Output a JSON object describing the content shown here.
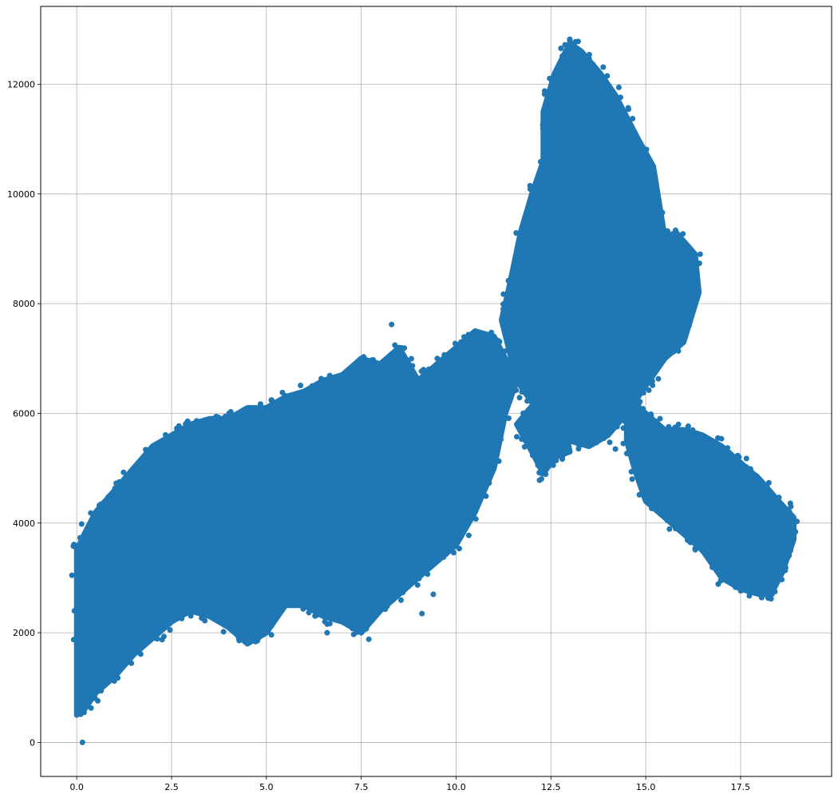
{
  "chart_data": {
    "type": "scatter",
    "title": "",
    "xlabel": "",
    "ylabel": "",
    "xlim": [
      -0.95,
      19.9
    ],
    "ylim": [
      -620,
      13420
    ],
    "grid": true,
    "marker_color": "#1f77b4",
    "x_ticks": [
      {
        "value": 0.0,
        "label": "0.0"
      },
      {
        "value": 2.5,
        "label": "2.5"
      },
      {
        "value": 5.0,
        "label": "5.0"
      },
      {
        "value": 7.5,
        "label": "7.5"
      },
      {
        "value": 10.0,
        "label": "10.0"
      },
      {
        "value": 12.5,
        "label": "12.5"
      },
      {
        "value": 15.0,
        "label": "15.0"
      },
      {
        "value": 17.5,
        "label": "17.5"
      }
    ],
    "y_ticks": [
      {
        "value": 0,
        "label": "0"
      },
      {
        "value": 2000,
        "label": "2000"
      },
      {
        "value": 4000,
        "label": "4000"
      },
      {
        "value": 6000,
        "label": "6000"
      },
      {
        "value": 8000,
        "label": "8000"
      },
      {
        "value": 10000,
        "label": "10000"
      },
      {
        "value": 12000,
        "label": "12000"
      }
    ],
    "density_regions": [
      {
        "name": "left-rising-band",
        "polygon": [
          [
            0.0,
            500
          ],
          [
            0.2,
            600
          ],
          [
            0.5,
            900
          ],
          [
            1.0,
            1200
          ],
          [
            1.5,
            1600
          ],
          [
            2.0,
            1900
          ],
          [
            2.5,
            2200
          ],
          [
            3.0,
            2400
          ],
          [
            3.5,
            2300
          ],
          [
            4.0,
            2100
          ],
          [
            4.5,
            1800
          ],
          [
            5.0,
            2000
          ],
          [
            5.5,
            2500
          ],
          [
            6.0,
            2500
          ],
          [
            6.5,
            2300
          ],
          [
            7.0,
            2200
          ],
          [
            7.5,
            2000
          ],
          [
            8.0,
            2400
          ],
          [
            8.5,
            2700
          ],
          [
            9.0,
            3000
          ],
          [
            9.5,
            3300
          ],
          [
            10.0,
            3600
          ],
          [
            10.5,
            4200
          ],
          [
            11.0,
            5000
          ],
          [
            11.3,
            6000
          ],
          [
            11.6,
            6600
          ],
          [
            11.3,
            7000
          ],
          [
            11.0,
            7400
          ],
          [
            10.5,
            7500
          ],
          [
            10.0,
            7200
          ],
          [
            9.5,
            6900
          ],
          [
            9.0,
            6600
          ],
          [
            8.5,
            7200
          ],
          [
            8.0,
            6900
          ],
          [
            7.5,
            7000
          ],
          [
            7.0,
            6700
          ],
          [
            6.5,
            6600
          ],
          [
            6.0,
            6400
          ],
          [
            5.5,
            6300
          ],
          [
            5.0,
            6100
          ],
          [
            4.5,
            6100
          ],
          [
            4.0,
            5900
          ],
          [
            3.5,
            5900
          ],
          [
            3.0,
            5800
          ],
          [
            2.5,
            5600
          ],
          [
            2.0,
            5400
          ],
          [
            1.5,
            5000
          ],
          [
            1.0,
            4600
          ],
          [
            0.5,
            4200
          ],
          [
            0.2,
            3800
          ],
          [
            0.0,
            3500
          ]
        ]
      },
      {
        "name": "upper-peak-lobe",
        "polygon": [
          [
            11.6,
            6600
          ],
          [
            12.0,
            6200
          ],
          [
            12.5,
            5800
          ],
          [
            13.0,
            5500
          ],
          [
            13.5,
            5400
          ],
          [
            14.0,
            5600
          ],
          [
            14.5,
            6000
          ],
          [
            15.0,
            6500
          ],
          [
            15.5,
            7000
          ],
          [
            16.0,
            7300
          ],
          [
            16.4,
            8200
          ],
          [
            16.3,
            8900
          ],
          [
            15.8,
            9300
          ],
          [
            15.5,
            9200
          ],
          [
            15.2,
            10500
          ],
          [
            14.8,
            11000
          ],
          [
            14.2,
            11800
          ],
          [
            13.8,
            12200
          ],
          [
            13.3,
            12600
          ],
          [
            13.0,
            12750
          ],
          [
            12.6,
            12200
          ],
          [
            12.3,
            11500
          ],
          [
            12.3,
            10600
          ],
          [
            12.0,
            10000
          ],
          [
            11.7,
            9300
          ],
          [
            11.4,
            8300
          ],
          [
            11.2,
            7700
          ]
        ]
      },
      {
        "name": "right-descending-arm",
        "polygon": [
          [
            14.5,
            6300
          ],
          [
            15.0,
            6000
          ],
          [
            15.5,
            5700
          ],
          [
            16.0,
            5700
          ],
          [
            16.5,
            5600
          ],
          [
            17.0,
            5400
          ],
          [
            17.5,
            5100
          ],
          [
            18.0,
            4800
          ],
          [
            18.5,
            4400
          ],
          [
            18.9,
            4100
          ],
          [
            18.9,
            3700
          ],
          [
            18.6,
            3100
          ],
          [
            18.3,
            2700
          ],
          [
            18.0,
            2700
          ],
          [
            17.5,
            2800
          ],
          [
            17.0,
            3000
          ],
          [
            16.5,
            3500
          ],
          [
            16.0,
            3800
          ],
          [
            15.5,
            4100
          ],
          [
            15.0,
            4400
          ],
          [
            14.7,
            5000
          ],
          [
            14.5,
            5500
          ]
        ]
      },
      {
        "name": "dip-under-peak",
        "polygon": [
          [
            11.6,
            5800
          ],
          [
            12.0,
            5300
          ],
          [
            12.3,
            4900
          ],
          [
            12.6,
            5200
          ],
          [
            13.0,
            5300
          ],
          [
            12.8,
            6000
          ],
          [
            12.2,
            6300
          ]
        ]
      }
    ],
    "outliers": [
      [
        0.15,
        0
      ],
      [
        12.2,
        4780
      ],
      [
        9.4,
        2700
      ],
      [
        9.1,
        2350
      ],
      [
        6.6,
        2000
      ],
      [
        7.7,
        1880
      ],
      [
        14.2,
        5350
      ],
      [
        8.3,
        7620
      ],
      [
        13.0,
        12800
      ]
    ]
  }
}
